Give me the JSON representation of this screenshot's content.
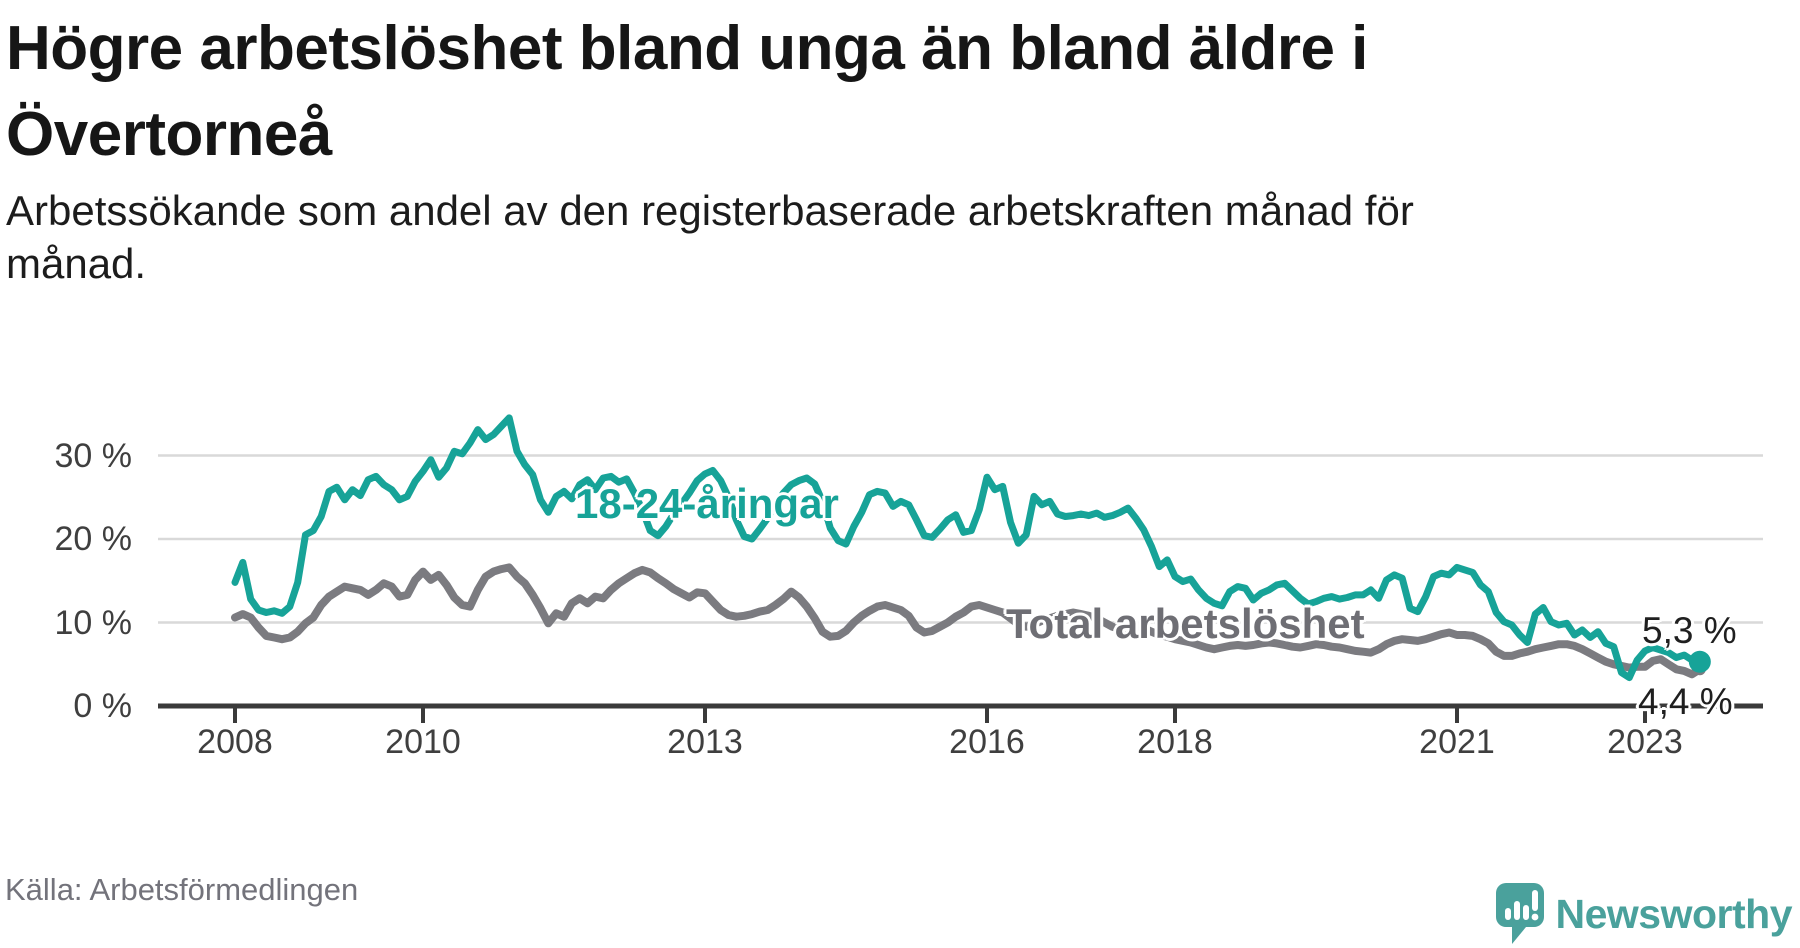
{
  "footer": {
    "source": "Källa: Arbetsförmedlingen",
    "brand": "Newsworthy"
  },
  "colors": {
    "young_line": "#17a398",
    "total_line": "#7b7b80",
    "total_label": "#6e6e74",
    "axis": "#3a3a3a",
    "grid": "#d9d9d9",
    "end_label": "#1f1f1f",
    "brand_teal": "#4aa19c"
  },
  "chart_data": {
    "type": "line",
    "title": "Högre arbetslöshet bland unga än bland äldre i Övertorneå",
    "subtitle": "Arbetssökande som andel av den registerbaserade arbetskraften månad för månad.",
    "x_start": "2008-01",
    "x_end": "2023-08",
    "frequency": "monthly",
    "y_unit": "%",
    "ylim": [
      0,
      36
    ],
    "grid": "horizontal",
    "legend": "inline-labels",
    "y_ticks": [
      {
        "v": 0,
        "label": "0 %"
      },
      {
        "v": 10,
        "label": "10 %"
      },
      {
        "v": 20,
        "label": "20 %"
      },
      {
        "v": 30,
        "label": "30 %"
      }
    ],
    "x_ticks": [
      {
        "year": 2008,
        "label": "2008"
      },
      {
        "year": 2010,
        "label": "2010"
      },
      {
        "year": 2013,
        "label": "2013"
      },
      {
        "year": 2016,
        "label": "2016"
      },
      {
        "year": 2018,
        "label": "2018"
      },
      {
        "year": 2021,
        "label": "2021"
      },
      {
        "year": 2023,
        "label": "2023"
      }
    ],
    "series": [
      {
        "id": "total",
        "name": "Total arbetslöshet",
        "color": "#7b7b80",
        "end_label": "4,4 %",
        "end_value": 4.4,
        "values": [
          10.6,
          11.0,
          10.6,
          9.4,
          8.4,
          8.2,
          8.0,
          8.2,
          8.9,
          9.9,
          10.6,
          12.1,
          13.1,
          13.7,
          14.3,
          14.1,
          13.9,
          13.3,
          13.9,
          14.7,
          14.3,
          13.1,
          13.3,
          15.1,
          16.1,
          15.1,
          15.7,
          14.5,
          13.0,
          12.1,
          11.9,
          13.9,
          15.5,
          16.1,
          16.4,
          16.6,
          15.5,
          14.7,
          13.3,
          11.7,
          9.9,
          11.1,
          10.7,
          12.3,
          12.9,
          12.3,
          13.1,
          12.9,
          13.9,
          14.7,
          15.3,
          15.9,
          16.3,
          16.0,
          15.3,
          14.7,
          14.0,
          13.5,
          13.0,
          13.6,
          13.5,
          12.5,
          11.5,
          10.9,
          10.7,
          10.8,
          11.0,
          11.3,
          11.5,
          12.1,
          12.8,
          13.7,
          13.0,
          11.9,
          10.5,
          8.9,
          8.3,
          8.4,
          9.0,
          10.0,
          10.8,
          11.4,
          11.9,
          12.1,
          11.8,
          11.5,
          10.8,
          9.4,
          8.8,
          9.0,
          9.5,
          10.0,
          10.7,
          11.2,
          11.9,
          12.1,
          11.8,
          11.5,
          11.2,
          10.5,
          9.8,
          9.5,
          9.8,
          10.2,
          10.5,
          10.8,
          11.0,
          11.2,
          11.0,
          10.8,
          10.5,
          10.0,
          9.5,
          9.2,
          9.4,
          9.6,
          9.3,
          8.9,
          8.5,
          8.3,
          8.0,
          7.8,
          7.6,
          7.3,
          7.0,
          6.8,
          7.0,
          7.2,
          7.3,
          7.2,
          7.3,
          7.5,
          7.6,
          7.5,
          7.3,
          7.1,
          7.0,
          7.2,
          7.4,
          7.3,
          7.1,
          7.0,
          6.8,
          6.6,
          6.5,
          6.4,
          6.8,
          7.4,
          7.8,
          8.0,
          7.9,
          7.8,
          8.0,
          8.3,
          8.6,
          8.8,
          8.5,
          8.5,
          8.4,
          8.0,
          7.5,
          6.5,
          6.0,
          6.0,
          6.3,
          6.5,
          6.8,
          7.0,
          7.2,
          7.4,
          7.4,
          7.2,
          6.8,
          6.3,
          5.8,
          5.3,
          5.0,
          4.8,
          4.6,
          4.7,
          4.7,
          5.4,
          5.6,
          5.0,
          4.4,
          4.2,
          3.8,
          4.4
        ]
      },
      {
        "id": "young",
        "name": "18-24-åringar",
        "color": "#17a398",
        "end_label": "5,3 %",
        "end_value": 5.3,
        "values": [
          14.8,
          17.2,
          12.8,
          11.5,
          11.2,
          11.4,
          11.1,
          11.9,
          14.8,
          20.5,
          21.0,
          22.7,
          25.7,
          26.2,
          24.7,
          25.9,
          25.2,
          27.1,
          27.5,
          26.5,
          25.9,
          24.7,
          25.1,
          26.9,
          28.1,
          29.5,
          27.4,
          28.5,
          30.5,
          30.2,
          31.5,
          33.1,
          31.9,
          32.5,
          33.5,
          34.5,
          30.5,
          28.9,
          27.7,
          24.7,
          23.2,
          25.1,
          25.7,
          24.8,
          26.5,
          27.1,
          25.9,
          27.3,
          27.5,
          26.8,
          27.2,
          25.5,
          23.5,
          21.0,
          20.4,
          21.5,
          23.0,
          24.2,
          25.5,
          27.0,
          27.8,
          28.2,
          27.0,
          25.0,
          22.3,
          20.3,
          20.0,
          21.2,
          22.5,
          24.0,
          25.5,
          26.5,
          27.0,
          27.3,
          26.6,
          24.5,
          21.3,
          19.8,
          19.4,
          21.5,
          23.2,
          25.3,
          25.7,
          25.5,
          23.9,
          24.5,
          24.1,
          22.3,
          20.4,
          20.2,
          21.2,
          22.3,
          22.9,
          20.8,
          21.0,
          23.5,
          27.4,
          25.9,
          26.3,
          22.0,
          19.5,
          20.5,
          25.1,
          24.1,
          24.5,
          23.0,
          22.7,
          22.8,
          23.0,
          22.8,
          23.1,
          22.6,
          22.8,
          23.2,
          23.7,
          22.5,
          21.1,
          19.1,
          16.7,
          17.5,
          15.5,
          14.9,
          15.2,
          13.9,
          12.9,
          12.3,
          12.0,
          13.7,
          14.3,
          14.1,
          12.7,
          13.5,
          13.9,
          14.5,
          14.7,
          13.8,
          12.9,
          12.2,
          12.5,
          12.9,
          13.1,
          12.8,
          13.0,
          13.3,
          13.3,
          13.9,
          12.9,
          15.1,
          15.7,
          15.3,
          11.7,
          11.3,
          13.1,
          15.5,
          15.9,
          15.7,
          16.6,
          16.3,
          16.0,
          14.5,
          13.7,
          11.2,
          10.1,
          9.7,
          8.5,
          7.6,
          11.0,
          11.8,
          10.1,
          9.7,
          9.9,
          8.5,
          9.1,
          8.2,
          8.9,
          7.5,
          7.1,
          4.0,
          3.4,
          5.5,
          6.6,
          7.0,
          6.7,
          6.4,
          5.8,
          6.1,
          5.5,
          5.3
        ]
      }
    ]
  }
}
